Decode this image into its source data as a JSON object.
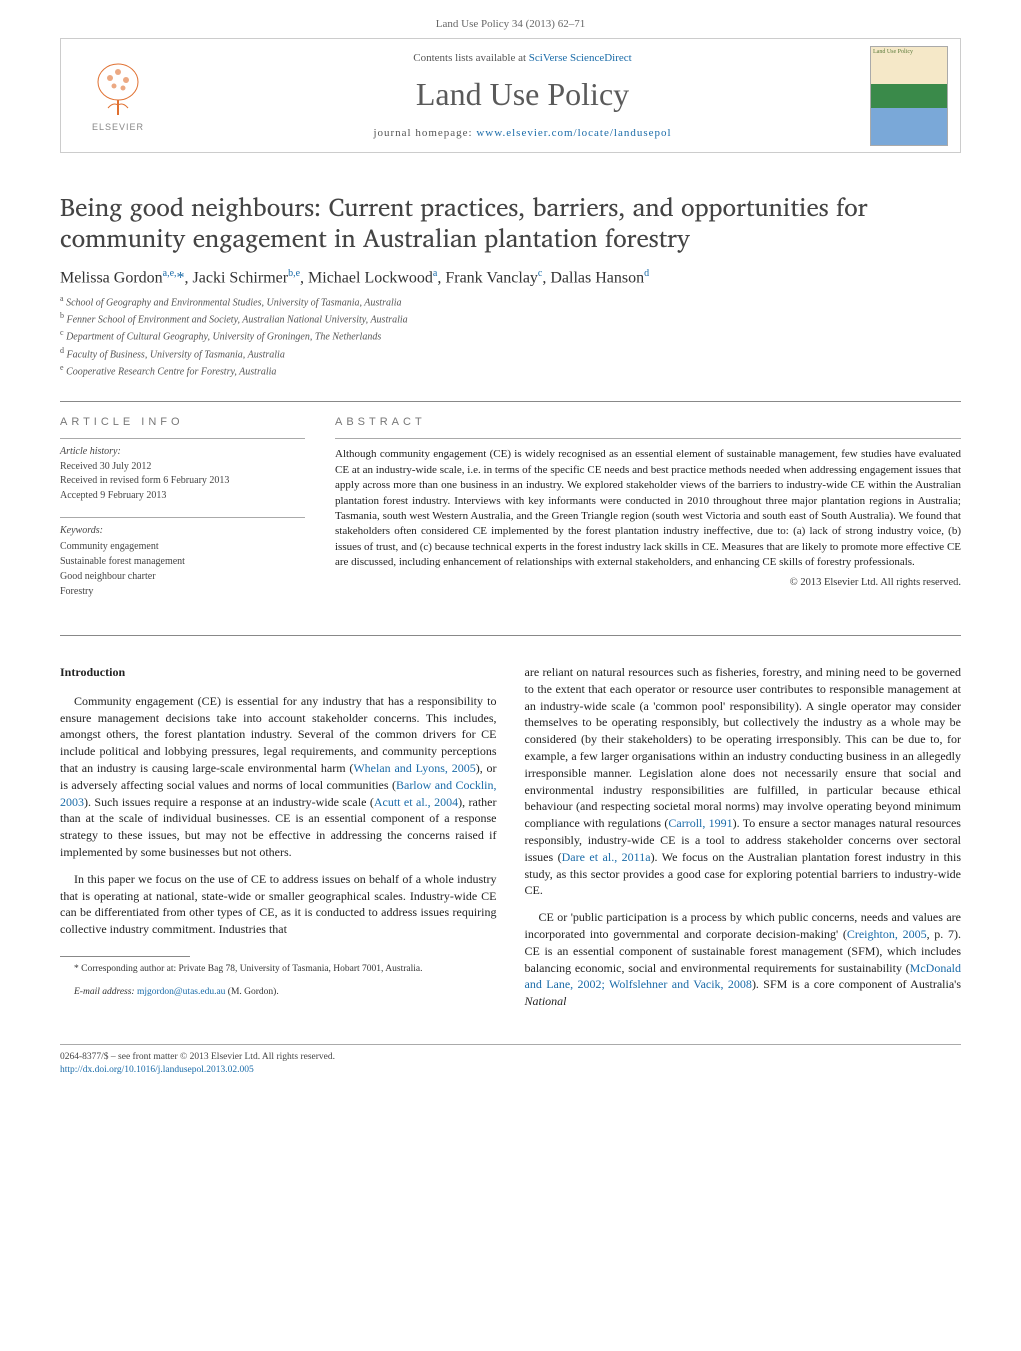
{
  "header": {
    "citation": "Land Use Policy 34 (2013) 62–71",
    "contents_prefix": "Contents lists available at ",
    "contents_link": "SciVerse ScienceDirect",
    "journal_name": "Land Use Policy",
    "homepage_prefix": "journal homepage: ",
    "homepage_url": "www.elsevier.com/locate/landusepol",
    "elsevier_text": "ELSEVIER",
    "cover_label": "Land Use Policy"
  },
  "article": {
    "title": "Being good neighbours: Current practices, barriers, and opportunities for community engagement in Australian plantation forestry",
    "authors_html": "Melissa Gordon<sup>a,e,</sup><span class='star'>*</span>, Jacki Schirmer<sup>b,e</sup>, Michael Lockwood<sup>a</sup>, Frank Vanclay<sup>c</sup>, Dallas Hanson<sup>d</sup>",
    "affiliations": [
      {
        "sup": "a",
        "text": "School of Geography and Environmental Studies, University of Tasmania, Australia"
      },
      {
        "sup": "b",
        "text": "Fenner School of Environment and Society, Australian National University, Australia"
      },
      {
        "sup": "c",
        "text": "Department of Cultural Geography, University of Groningen, The Netherlands"
      },
      {
        "sup": "d",
        "text": "Faculty of Business, University of Tasmania, Australia"
      },
      {
        "sup": "e",
        "text": "Cooperative Research Centre for Forestry, Australia"
      }
    ]
  },
  "info": {
    "heading": "ARTICLE INFO",
    "history_label": "Article history:",
    "received": "Received 30 July 2012",
    "revised": "Received in revised form 6 February 2013",
    "accepted": "Accepted 9 February 2013",
    "keywords_label": "Keywords:",
    "keywords": [
      "Community engagement",
      "Sustainable forest management",
      "Good neighbour charter",
      "Forestry"
    ]
  },
  "abstract": {
    "heading": "ABSTRACT",
    "text": "Although community engagement (CE) is widely recognised as an essential element of sustainable management, few studies have evaluated CE at an industry-wide scale, i.e. in terms of the specific CE needs and best practice methods needed when addressing engagement issues that apply across more than one business in an industry. We explored stakeholder views of the barriers to industry-wide CE within the Australian plantation forest industry. Interviews with key informants were conducted in 2010 throughout three major plantation regions in Australia; Tasmania, south west Western Australia, and the Green Triangle region (south west Victoria and south east of South Australia). We found that stakeholders often considered CE implemented by the forest plantation industry ineffective, due to: (a) lack of strong industry voice, (b) issues of trust, and (c) because technical experts in the forest industry lack skills in CE. Measures that are likely to promote more effective CE are discussed, including enhancement of relationships with external stakeholders, and enhancing CE skills of forestry professionals.",
    "copyright": "© 2013 Elsevier Ltd. All rights reserved."
  },
  "body": {
    "intro_heading": "Introduction",
    "col1_paras": [
      "Community engagement (CE) is essential for any industry that has a responsibility to ensure management decisions take into account stakeholder concerns. This includes, amongst others, the forest plantation industry. Several of the common drivers for CE include political and lobbying pressures, legal requirements, and community perceptions that an industry is causing large-scale environmental harm (<span class='cite'>Whelan and Lyons, 2005</span>), or is adversely affecting social values and norms of local communities (<span class='cite'>Barlow and Cocklin, 2003</span>). Such issues require a response at an industry-wide scale (<span class='cite'>Acutt et al., 2004</span>), rather than at the scale of individual businesses. CE is an essential component of a response strategy to these issues, but may not be effective in addressing the concerns raised if implemented by some businesses but not others.",
      "In this paper we focus on the use of CE to address issues on behalf of a whole industry that is operating at national, state-wide or smaller geographical scales. Industry-wide CE can be differentiated from other types of CE, as it is conducted to address issues requiring collective industry commitment. Industries that"
    ],
    "col2_paras": [
      "are reliant on natural resources such as fisheries, forestry, and mining need to be governed to the extent that each operator or resource user contributes to responsible management at an industry-wide scale (a 'common pool' responsibility). A single operator may consider themselves to be operating responsibly, but collectively the industry as a whole may be considered (by their stakeholders) to be operating irresponsibly. This can be due to, for example, a few larger organisations within an industry conducting business in an allegedly irresponsible manner. Legislation alone does not necessarily ensure that social and environmental industry responsibilities are fulfilled, in particular because ethical behaviour (and respecting societal moral norms) may involve operating beyond minimum compliance with regulations (<span class='cite'>Carroll, 1991</span>). To ensure a sector manages natural resources responsibly, industry-wide CE is a tool to address stakeholder concerns over sectoral issues (<span class='cite'>Dare et al., 2011a</span>). We focus on the Australian plantation forest industry in this study, as this sector provides a good case for exploring potential barriers to industry-wide CE.",
      "CE or 'public participation is a process by which public concerns, needs and values are incorporated into governmental and corporate decision-making' (<span class='cite'>Creighton, 2005</span>, p. 7). CE is an essential component of sustainable forest management (SFM), which includes balancing economic, social and environmental requirements for sustainability (<span class='cite'>McDonald and Lane, 2002; Wolfslehner and Vacik, 2008</span>). SFM is a core component of Australia's <em>National</em>"
    ]
  },
  "footnote": {
    "corresponding": "* Corresponding author at: Private Bag 78, University of Tasmania, Hobart 7001, Australia.",
    "email_label": "E-mail address:",
    "email": "mjgordon@utas.edu.au",
    "email_who": "(M. Gordon)."
  },
  "footer": {
    "issn": "0264-8377/$ – see front matter © 2013 Elsevier Ltd. All rights reserved.",
    "doi": "http://dx.doi.org/10.1016/j.landusepol.2013.02.005"
  },
  "colors": {
    "link": "#1a6ba8",
    "text": "#222222",
    "muted": "#666666",
    "rule": "#888888"
  }
}
